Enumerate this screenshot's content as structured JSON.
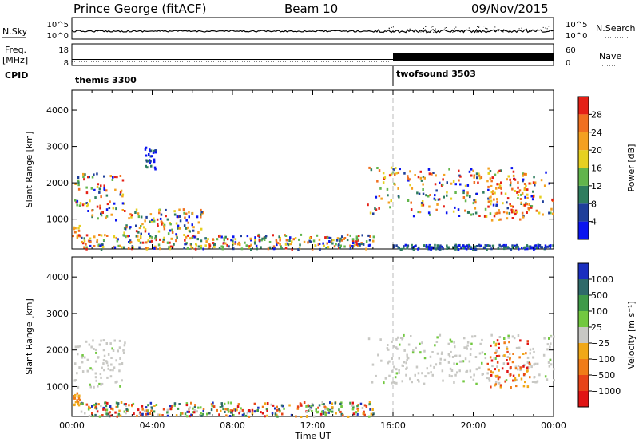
{
  "header": {
    "station": "Prince George (fitACF)",
    "beam": "Beam 10",
    "date": "09/Nov/2015"
  },
  "noise_panel": {
    "left_label": "N.Sky",
    "right_label": "N.Search",
    "left_ticks": [
      "10^5",
      "10^0"
    ],
    "right_ticks": [
      "10^5",
      "10^0"
    ]
  },
  "freq_panel": {
    "left_label_line1": "Freq.",
    "left_label_line2": "[MHz]",
    "right_label": "Nave",
    "left_ticks": [
      "18",
      "8"
    ],
    "right_ticks": [
      "60",
      "0"
    ],
    "freq_mhz": [
      {
        "from_h": 0,
        "to_h": 16,
        "mhz": 10.8
      },
      {
        "from_h": 16,
        "to_h": 24,
        "mhz": 11.0
      }
    ],
    "nave": [
      {
        "from_h": 0,
        "to_h": 16,
        "nave": 2
      },
      {
        "from_h": 16,
        "to_h": 24,
        "nave": 20
      }
    ]
  },
  "cpid": {
    "label": "CPID",
    "segments": [
      {
        "name": "themis 3300",
        "start_h": 0,
        "end_h": 16
      },
      {
        "name": "twofsound 3503",
        "start_h": 16,
        "end_h": 24
      }
    ]
  },
  "chart_data": [
    {
      "type": "heatmap",
      "name": "power",
      "ylabel": "Slant Range [km]",
      "xlabel": "",
      "xlim_hours": [
        0,
        24
      ],
      "ylim": [
        180,
        4550
      ],
      "yticks": [
        "1000",
        "2000",
        "3000",
        "4000"
      ],
      "colorbar": {
        "title": "Power [dB]",
        "ticks": [
          "4",
          "8",
          "12",
          "16",
          "20",
          "24",
          "28"
        ],
        "colors": [
          "#0a14f0",
          "#1f3f9a",
          "#2e7d5e",
          "#62b54c",
          "#e6d020",
          "#f4a020",
          "#f07020",
          "#e52016"
        ]
      },
      "regions": [
        {
          "t0": 0.1,
          "t1": 2.6,
          "r0": 1000,
          "r1": 2300,
          "values": "mixed"
        },
        {
          "t0": 0.0,
          "t1": 0.4,
          "r0": 520,
          "r1": 850,
          "values": "high"
        },
        {
          "t0": 0.4,
          "t1": 15.0,
          "r0": 200,
          "r1": 600,
          "values": "mixed"
        },
        {
          "t0": 2.5,
          "t1": 6.5,
          "r0": 600,
          "r1": 1300,
          "values": "mixed"
        },
        {
          "t0": 3.6,
          "t1": 4.2,
          "r0": 2400,
          "r1": 3000,
          "values": "low"
        },
        {
          "t0": 14.7,
          "t1": 24.0,
          "r0": 1100,
          "r1": 2450,
          "values": "mixed"
        },
        {
          "t0": 20.6,
          "t1": 22.8,
          "r0": 1000,
          "r1": 2300,
          "values": "high"
        },
        {
          "t0": 16.0,
          "t1": 24.0,
          "r0": 200,
          "r1": 320,
          "values": "low"
        }
      ]
    },
    {
      "type": "heatmap",
      "name": "velocity",
      "ylabel": "Slant Range [km]",
      "xlabel": "Time UT",
      "xlim_hours": [
        0,
        24
      ],
      "ylim": [
        180,
        4550
      ],
      "yticks": [
        "1000",
        "2000",
        "3000",
        "4000"
      ],
      "xticks": [
        "00:00",
        "04:00",
        "08:00",
        "12:00",
        "16:00",
        "20:00",
        "00:00"
      ],
      "colorbar": {
        "title": "Velocity [m s⁻¹]",
        "ticks": [
          "1000",
          "500",
          "100",
          "25",
          "−25",
          "−100",
          "−500",
          "−1000"
        ],
        "colors": [
          "#1a2fc0",
          "#2e6a6a",
          "#3e9a48",
          "#72c840",
          "#c8c8c4",
          "#f0a818",
          "#f07c18",
          "#e84418",
          "#e01414"
        ]
      },
      "regions": [
        {
          "t0": 0.1,
          "t1": 2.6,
          "r0": 1000,
          "r1": 2300,
          "values": "ground (grey)"
        },
        {
          "t0": 0.0,
          "t1": 0.5,
          "r0": 520,
          "r1": 850,
          "values": "-100 to -500"
        },
        {
          "t0": 0.4,
          "t1": 15.0,
          "r0": 200,
          "r1": 600,
          "values": "mixed"
        },
        {
          "t0": 14.7,
          "t1": 24.0,
          "r0": 1100,
          "r1": 2450,
          "values": "ground (grey)"
        },
        {
          "t0": 20.6,
          "t1": 22.8,
          "r0": 1000,
          "r1": 2300,
          "values": "-100 to -1000"
        }
      ]
    }
  ]
}
